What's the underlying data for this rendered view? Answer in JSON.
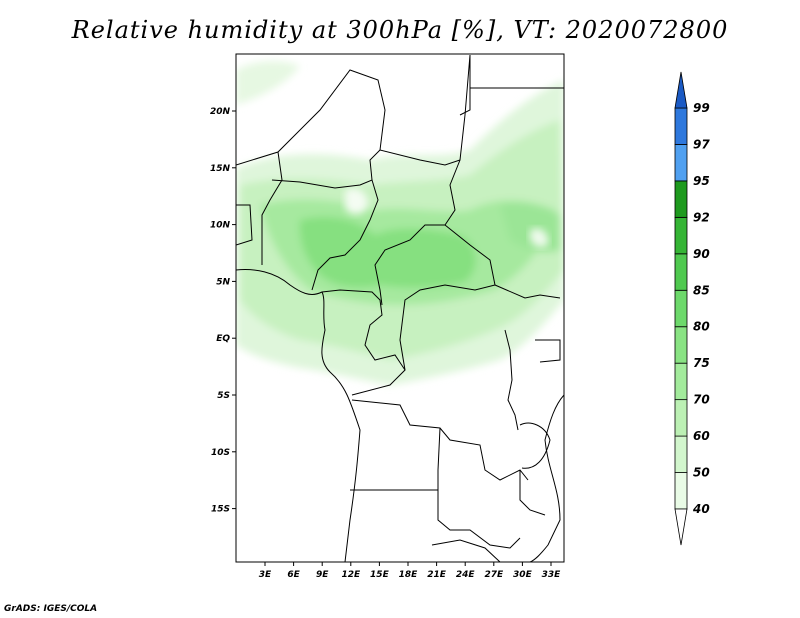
{
  "title": "Relative humidity at 300hPa [%], VT: 2020072800",
  "credit": "GrADS: IGES/COLA",
  "map": {
    "lon_labels": [
      "3E",
      "6E",
      "9E",
      "12E",
      "15E",
      "18E",
      "21E",
      "24E",
      "27E",
      "30E",
      "33E"
    ],
    "lat_labels": [
      "20N",
      "15N",
      "10N",
      "5N",
      "EQ",
      "5S",
      "10S",
      "15S"
    ]
  },
  "colorbar": {
    "labels": [
      "40",
      "50",
      "60",
      "70",
      "75",
      "80",
      "85",
      "90",
      "92",
      "95",
      "97",
      "99"
    ],
    "colors": [
      "#ffffff",
      "#e9fbe6",
      "#d2f6cd",
      "#bcf0b4",
      "#a3eb9c",
      "#89e383",
      "#6dd96b",
      "#4fc94f",
      "#35b535",
      "#1e9a1e",
      "#50a0f0",
      "#2e78dd",
      "#1b5ac4"
    ]
  },
  "colors": {
    "land_border": "#000000",
    "frame": "#000000"
  }
}
